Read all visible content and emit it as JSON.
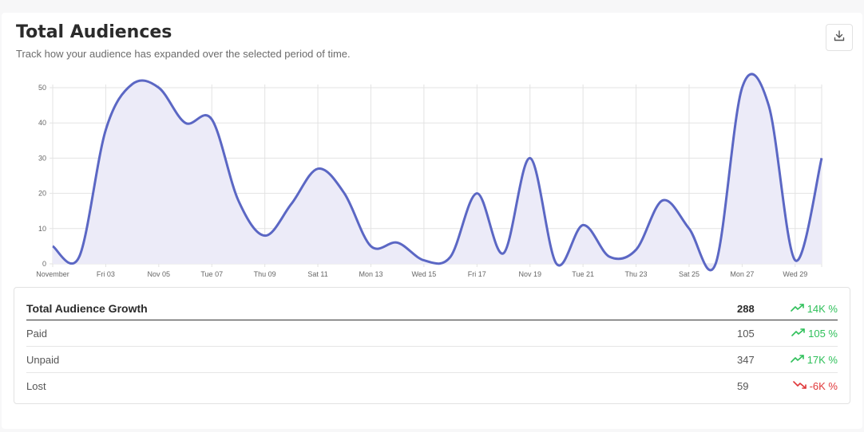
{
  "header": {
    "title": "Total Audiences",
    "subtitle": "Track how your audience has expanded over the selected period of time.",
    "download_icon": "download-icon"
  },
  "chart_data": {
    "type": "area",
    "x_tick_labels": [
      "November",
      "Fri 03",
      "Nov 05",
      "Tue 07",
      "Thu 09",
      "Sat 11",
      "Mon 13",
      "Wed 15",
      "Fri 17",
      "Nov 19",
      "Tue 21",
      "Thu 23",
      "Sat 25",
      "Mon 27",
      "Wed 29"
    ],
    "x": [
      1,
      2,
      3,
      4,
      5,
      6,
      7,
      8,
      9,
      10,
      11,
      12,
      13,
      14,
      15,
      16,
      17,
      18,
      19,
      20,
      21,
      22,
      23,
      24,
      25,
      26,
      27,
      28,
      29,
      30
    ],
    "values": [
      5,
      2,
      38,
      51,
      50,
      40,
      41,
      18,
      8,
      17,
      27,
      20,
      5,
      6,
      1,
      2,
      20,
      3,
      30,
      0,
      11,
      2,
      4,
      18,
      10,
      0,
      50,
      45,
      1,
      30
    ],
    "ylim": [
      0,
      50
    ],
    "yticks": [
      0,
      10,
      20,
      30,
      40,
      50
    ],
    "grid": true,
    "colors": {
      "line": "#5b67c4",
      "fill": "#ecebf8",
      "grid": "#e3e3e3"
    }
  },
  "table": {
    "rows": [
      {
        "label": "Total Audience Growth",
        "value": "288",
        "change": "14K %",
        "trend": "up"
      },
      {
        "label": "Paid",
        "value": "105",
        "change": "105 %",
        "trend": "up"
      },
      {
        "label": "Unpaid",
        "value": "347",
        "change": "17K %",
        "trend": "up"
      },
      {
        "label": "Lost",
        "value": "59",
        "change": "-6K %",
        "trend": "down"
      }
    ],
    "colors": {
      "up": "#2fc05a",
      "down": "#e0383a"
    },
    "icons": {
      "up": "trending-up-icon",
      "down": "trending-down-icon"
    }
  }
}
